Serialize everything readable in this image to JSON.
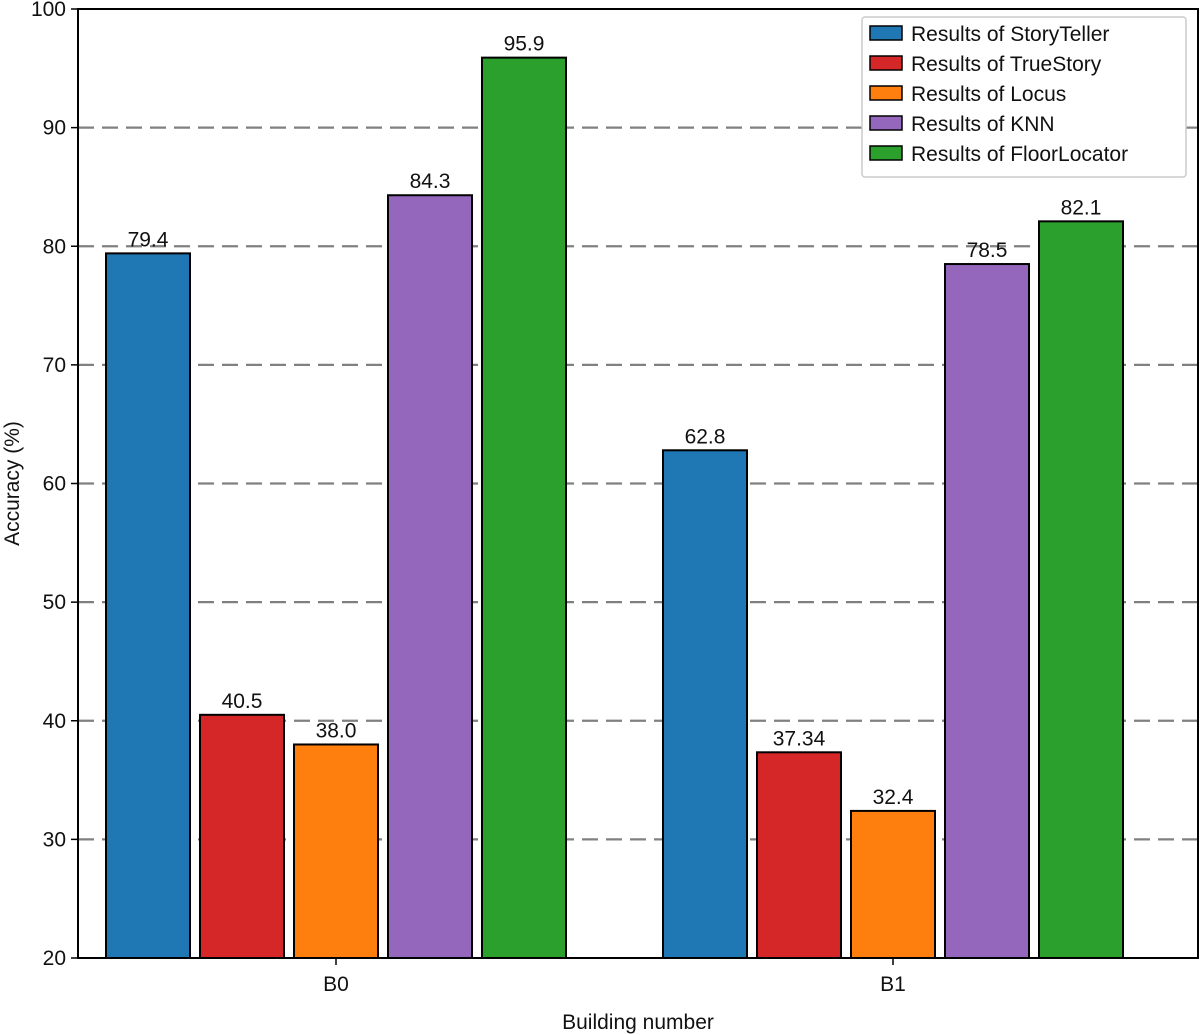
{
  "chart_data": {
    "type": "bar",
    "title": "",
    "xlabel": "Building number",
    "ylabel": "Accuracy (%)",
    "ylim": [
      20,
      100
    ],
    "yticks": [
      "20",
      "30",
      "40",
      "50",
      "60",
      "70",
      "80",
      "90",
      "100"
    ],
    "grid": "horizontal dashed",
    "legend_position": "top-right",
    "categories": [
      "B0",
      "B1"
    ],
    "series": [
      {
        "name": "Results of StoryTeller",
        "color": "#1f77b4",
        "values": [
          79.4,
          62.8
        ],
        "labels": [
          "79.4",
          "62.8"
        ]
      },
      {
        "name": "Results of TrueStory",
        "color": "#d62728",
        "values": [
          40.5,
          37.34
        ],
        "labels": [
          "40.5",
          "37.34"
        ]
      },
      {
        "name": "Results of Locus",
        "color": "#ff7f0e",
        "values": [
          38.0,
          32.4
        ],
        "labels": [
          "38.0",
          "32.4"
        ]
      },
      {
        "name": "Results of KNN",
        "color": "#9467bd",
        "values": [
          84.3,
          78.5
        ],
        "labels": [
          "84.3",
          "78.5"
        ]
      },
      {
        "name": "Results of FloorLocator",
        "color": "#2ca02c",
        "values": [
          95.9,
          82.1
        ],
        "labels": [
          "95.9",
          "82.1"
        ]
      }
    ]
  }
}
